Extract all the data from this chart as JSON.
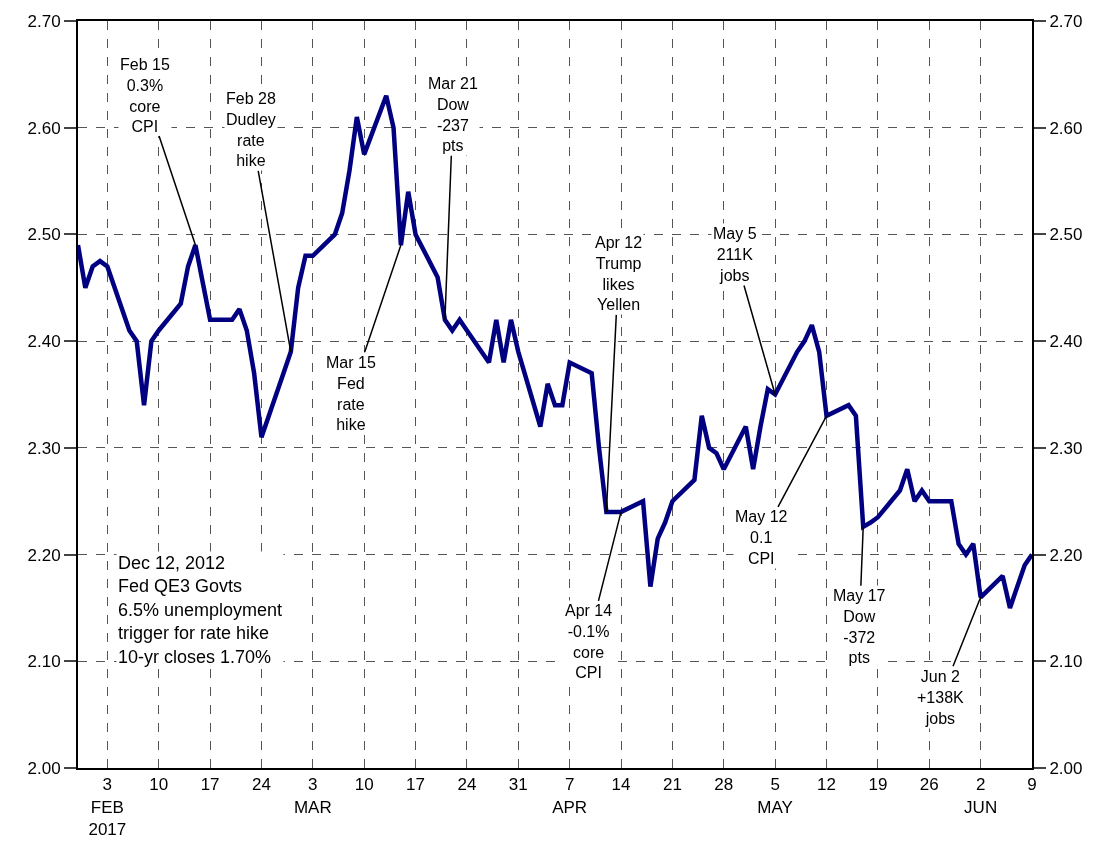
{
  "chart_data": {
    "type": "line",
    "x": [
      "2017-01-30",
      "2017-01-31",
      "2017-02-01",
      "2017-02-02",
      "2017-02-03",
      "2017-02-06",
      "2017-02-07",
      "2017-02-08",
      "2017-02-09",
      "2017-02-10",
      "2017-02-13",
      "2017-02-14",
      "2017-02-15",
      "2017-02-16",
      "2017-02-17",
      "2017-02-20",
      "2017-02-21",
      "2017-02-22",
      "2017-02-23",
      "2017-02-24",
      "2017-02-27",
      "2017-02-28",
      "2017-03-01",
      "2017-03-02",
      "2017-03-03",
      "2017-03-06",
      "2017-03-07",
      "2017-03-08",
      "2017-03-09",
      "2017-03-10",
      "2017-03-13",
      "2017-03-14",
      "2017-03-15",
      "2017-03-16",
      "2017-03-17",
      "2017-03-20",
      "2017-03-21",
      "2017-03-22",
      "2017-03-23",
      "2017-03-24",
      "2017-03-27",
      "2017-03-28",
      "2017-03-29",
      "2017-03-30",
      "2017-03-31",
      "2017-04-03",
      "2017-04-04",
      "2017-04-05",
      "2017-04-06",
      "2017-04-07",
      "2017-04-10",
      "2017-04-11",
      "2017-04-12",
      "2017-04-13",
      "2017-04-14",
      "2017-04-17",
      "2017-04-18",
      "2017-04-19",
      "2017-04-20",
      "2017-04-21",
      "2017-04-24",
      "2017-04-25",
      "2017-04-26",
      "2017-04-27",
      "2017-04-28",
      "2017-05-01",
      "2017-05-02",
      "2017-05-03",
      "2017-05-04",
      "2017-05-05",
      "2017-05-08",
      "2017-05-09",
      "2017-05-10",
      "2017-05-11",
      "2017-05-12",
      "2017-05-15",
      "2017-05-16",
      "2017-05-17",
      "2017-05-18",
      "2017-05-19",
      "2017-05-22",
      "2017-05-23",
      "2017-05-24",
      "2017-05-25",
      "2017-05-26",
      "2017-05-29",
      "2017-05-30",
      "2017-05-31",
      "2017-06-01",
      "2017-06-02",
      "2017-06-05",
      "2017-06-06",
      "2017-06-07",
      "2017-06-08",
      "2017-06-09"
    ],
    "series": [
      {
        "color": "#000080",
        "values": [
          2.49,
          2.45,
          2.47,
          2.475,
          2.47,
          2.41,
          2.4,
          2.34,
          2.4,
          2.41,
          2.435,
          2.47,
          2.49,
          2.455,
          2.42,
          2.42,
          2.43,
          2.41,
          2.37,
          2.31,
          2.37,
          2.39,
          2.45,
          2.48,
          2.48,
          2.5,
          2.52,
          2.56,
          2.61,
          2.575,
          2.63,
          2.6,
          2.49,
          2.54,
          2.5,
          2.46,
          2.42,
          2.41,
          2.42,
          2.41,
          2.38,
          2.42,
          2.38,
          2.42,
          2.39,
          2.32,
          2.36,
          2.34,
          2.34,
          2.38,
          2.37,
          2.3,
          2.24,
          2.24,
          2.24,
          2.25,
          2.17,
          2.215,
          2.23,
          2.25,
          2.27,
          2.33,
          2.3,
          2.295,
          2.28,
          2.32,
          2.28,
          2.32,
          2.355,
          2.35,
          2.39,
          2.4,
          2.415,
          2.39,
          2.33,
          2.34,
          2.33,
          2.226,
          2.23,
          2.235,
          2.26,
          2.28,
          2.25,
          2.26,
          2.25,
          2.25,
          2.21,
          2.2,
          2.21,
          2.16,
          2.18,
          2.15,
          2.17,
          2.19,
          2.2
        ]
      }
    ],
    "xlim": [
      "2017-01-30",
      "2017-06-09"
    ],
    "xticks": [
      {
        "value": "2017-02-03",
        "label": "3\nFEB\n2017"
      },
      {
        "value": "2017-02-10",
        "label": "10"
      },
      {
        "value": "2017-02-17",
        "label": "17"
      },
      {
        "value": "2017-02-24",
        "label": "24"
      },
      {
        "value": "2017-03-03",
        "label": "3\nMAR"
      },
      {
        "value": "2017-03-10",
        "label": "10"
      },
      {
        "value": "2017-03-17",
        "label": "17"
      },
      {
        "value": "2017-03-24",
        "label": "24"
      },
      {
        "value": "2017-03-31",
        "label": "31"
      },
      {
        "value": "2017-04-07",
        "label": "7\nAPR"
      },
      {
        "value": "2017-04-14",
        "label": "14"
      },
      {
        "value": "2017-04-21",
        "label": "21"
      },
      {
        "value": "2017-04-28",
        "label": "28"
      },
      {
        "value": "2017-05-05",
        "label": "5\nMAY"
      },
      {
        "value": "2017-05-12",
        "label": "12"
      },
      {
        "value": "2017-05-19",
        "label": "19"
      },
      {
        "value": "2017-05-26",
        "label": "26"
      },
      {
        "value": "2017-06-02",
        "label": "2\nJUN"
      },
      {
        "value": "2017-06-09",
        "label": "9"
      }
    ],
    "ylim": [
      2.0,
      2.7
    ],
    "yticks": [
      {
        "value": 2.0,
        "label": "2.00"
      },
      {
        "value": 2.1,
        "label": "2.10"
      },
      {
        "value": 2.2,
        "label": "2.20"
      },
      {
        "value": 2.3,
        "label": "2.30"
      },
      {
        "value": 2.4,
        "label": "2.40"
      },
      {
        "value": 2.5,
        "label": "2.50"
      },
      {
        "value": 2.6,
        "label": "2.60"
      },
      {
        "value": 2.7,
        "label": "2.70"
      }
    ],
    "y2lim": [
      2.0,
      2.7
    ],
    "y2ticks": [
      {
        "value": 2.0,
        "label": "2.00"
      },
      {
        "value": 2.1,
        "label": "2.10"
      },
      {
        "value": 2.2,
        "label": "2.20"
      },
      {
        "value": 2.3,
        "label": "2.30"
      },
      {
        "value": 2.4,
        "label": "2.40"
      },
      {
        "value": 2.5,
        "label": "2.50"
      },
      {
        "value": 2.6,
        "label": "2.60"
      },
      {
        "value": 2.7,
        "label": "2.70"
      }
    ],
    "grid": true,
    "line_style": "solid",
    "marker": "none",
    "annotations": [
      {
        "text": "Feb 15\n0.3%\ncore\nCPI",
        "x": "2017-02-15",
        "y": 2.49
      },
      {
        "text": "Feb 28\nDudley\nrate\nhike",
        "x": "2017-02-28",
        "y": 2.39
      },
      {
        "text": "Mar 21\nDow\n-237\npts",
        "x": "2017-03-21",
        "y": 2.42
      },
      {
        "text": "Mar 15\nFed\nrate\nhike",
        "x": "2017-03-15",
        "y": 2.49
      },
      {
        "text": "Apr 12\nTrump\nlikes\nYellen",
        "x": "2017-04-12",
        "y": 2.24
      },
      {
        "text": "Apr 14\n-0.1%\ncore\nCPI",
        "x": "2017-04-14",
        "y": 2.24
      },
      {
        "text": "May 5\n211K\njobs",
        "x": "2017-05-05",
        "y": 2.35
      },
      {
        "text": "May 12\n0.1\nCPI",
        "x": "2017-05-12",
        "y": 2.33
      },
      {
        "text": "May 17\nDow\n-372\npts",
        "x": "2017-05-17",
        "y": 2.226
      },
      {
        "text": "Jun 2\n+138K\njobs",
        "x": "2017-06-02",
        "y": 2.16
      },
      "Dec 12, 2012\nFed QE3 Govts\n6.5% unemployment\ntrigger for rate hike\n10-yr closes 1.70%"
    ]
  }
}
